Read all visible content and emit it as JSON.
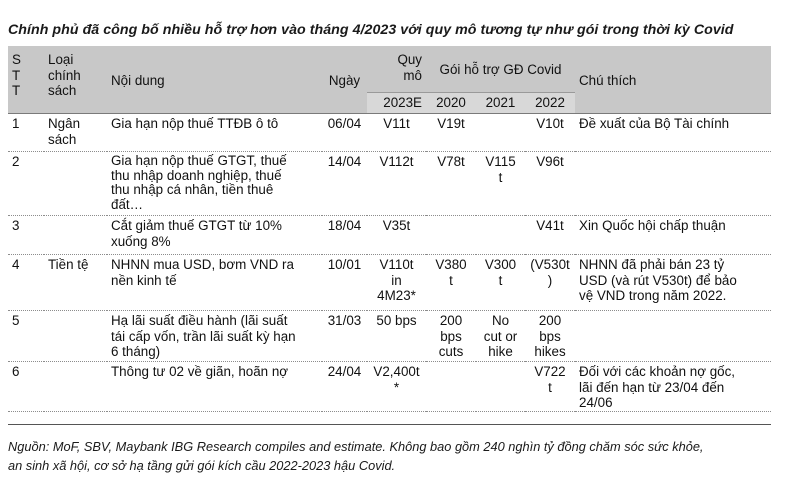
{
  "title": "Chính phủ đã công bố nhiều hỗ trợ hơn vào tháng 4/2023 với quy mô tương tự như gói trong thời kỳ Covid",
  "headers": {
    "stt": "S\nT\nT",
    "loai": "Loại\nchính\nsách",
    "noi_dung": "Nội dung",
    "ngay": "Ngày",
    "quy_mo": "Quy\nmô",
    "quy_mo_sub": "2023E",
    "goi": "Gói hỗ trợ GĐ Covid",
    "y2020": "2020",
    "y2021": "2021",
    "y2022": "2022",
    "chu_thich": "Chú thích"
  },
  "rows": [
    {
      "stt": "1",
      "loai": "Ngân\nsách",
      "noi_dung": "Gia hạn nộp thuế TTĐB ô tô",
      "ngay": "06/04",
      "quy_mo": "V11t",
      "y2020": "V19t",
      "y2021": "",
      "y2022": "V10t",
      "chu_thich": "Đề xuất của Bộ Tài chính"
    },
    {
      "stt": "2",
      "loai": "",
      "noi_dung": "Gia hạn nộp thuế GTGT, thuế\nthu nhập doanh nghiệp, thuế\nthu nhập cá nhân, tiền thuê\nđất…",
      "ngay": "14/04",
      "quy_mo": "V112t",
      "y2020": "V78t",
      "y2021": "V115\nt",
      "y2022": "V96t",
      "chu_thich": ""
    },
    {
      "stt": "3",
      "loai": "",
      "noi_dung": "Cắt giảm thuế GTGT từ 10%\nxuống 8%",
      "ngay": "18/04",
      "quy_mo": "V35t",
      "y2020": "",
      "y2021": "",
      "y2022": "V41t",
      "chu_thich": "Xin Quốc hội chấp thuận"
    },
    {
      "stt": "4",
      "loai": "Tiền tệ",
      "noi_dung": "NHNN mua USD, bơm VND ra\nnền kinh tế",
      "ngay": "10/01",
      "quy_mo": "V110t\nin\n4M23*",
      "y2020": "V380\nt",
      "y2021": "V300\nt",
      "y2022": "(V530t\n)",
      "chu_thich": "NHNN đã phải bán 23 tỷ\nUSD (và rút V530t) để bảo\nvệ VND trong năm 2022."
    },
    {
      "stt": "5",
      "loai": "",
      "noi_dung": "Hạ lãi suất điều hành (lãi suất\ntái cấp vốn, trần lãi suất kỳ hạn\n6 tháng)",
      "ngay": "31/03",
      "quy_mo": "50 bps",
      "y2020": "200\nbps\ncuts",
      "y2021": "No\ncut or\nhike",
      "y2022": "200\nbps\nhikes",
      "chu_thich": ""
    },
    {
      "stt": "6",
      "loai": "",
      "noi_dung": "Thông tư 02 về giãn, hoãn nợ",
      "ngay": "24/04",
      "quy_mo": "V2,400t\n*",
      "y2020": "",
      "y2021": "",
      "y2022": "V722\nt",
      "chu_thich": "Đối với các khoản nợ gốc,\nlãi đến hạn từ 23/04 đến\n24/06"
    }
  ],
  "notes": "Nguồn: MoF, SBV, Maybank IBG Research compiles and estimate. Không bao gồm 240 nghìn tỷ đồng chăm sóc sức khỏe,\nan sinh xã hội, cơ sở hạ tầng gửi gói kích cầu 2022-2023 hậu Covid."
}
